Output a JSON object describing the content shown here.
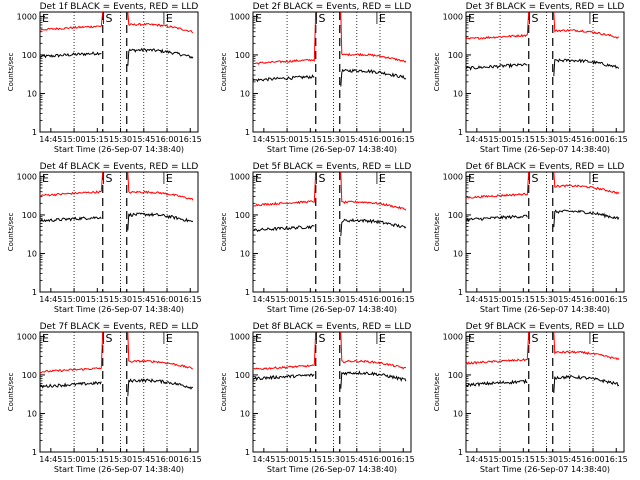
{
  "chart_data": {
    "type": "line",
    "grid": false,
    "legend": "title",
    "x_ticks": [
      "14:45",
      "15:00",
      "15:15",
      "15:30",
      "15:45",
      "16:00",
      "16:15"
    ],
    "y_ticks": [
      "1",
      "10",
      "100",
      "1000"
    ],
    "ylabel": "Counts/sec",
    "xlabel": "Start Time (26-Sep-07 14:38:40)",
    "ylim": [
      1,
      1000
    ],
    "y_scale": "log",
    "markers": [
      {
        "label": "E",
        "time": "14:38"
      },
      {
        "label": "S",
        "time": "15:19"
      },
      {
        "label": "E",
        "time": "15:58"
      }
    ],
    "series_colors": {
      "events": "#000000",
      "lld": "#ff0000"
    },
    "panels": [
      {
        "title": "Det 1f BLACK = Events, RED = LLD",
        "events_level": 90,
        "lld_level": 450,
        "events_after": 130,
        "lld_after": 600
      },
      {
        "title": "Det 2f BLACK = Events, RED = LLD",
        "events_level": 22,
        "lld_level": 60,
        "events_after": 38,
        "lld_after": 100
      },
      {
        "title": "Det 3f BLACK = Events, RED = LLD",
        "events_level": 45,
        "lld_level": 260,
        "events_after": 70,
        "lld_after": 420
      },
      {
        "title": "Det 4f BLACK = Events, RED = LLD",
        "events_level": 70,
        "lld_level": 320,
        "events_after": 100,
        "lld_after": 380
      },
      {
        "title": "Det 5f BLACK = Events, RED = LLD",
        "events_level": 40,
        "lld_level": 180,
        "events_after": 70,
        "lld_after": 210
      },
      {
        "title": "Det 6f BLACK = Events, RED = LLD",
        "events_level": 75,
        "lld_level": 280,
        "events_after": 120,
        "lld_after": 550
      },
      {
        "title": "Det 7f BLACK = Events, RED = LLD",
        "events_level": 50,
        "lld_level": 120,
        "events_after": 70,
        "lld_after": 220
      },
      {
        "title": "Det 8f BLACK = Events, RED = LLD",
        "events_level": 80,
        "lld_level": 140,
        "events_after": 110,
        "lld_after": 220
      },
      {
        "title": "Det 9f BLACK = Events, RED = LLD",
        "events_level": 55,
        "lld_level": 200,
        "events_after": 85,
        "lld_after": 380
      }
    ]
  }
}
